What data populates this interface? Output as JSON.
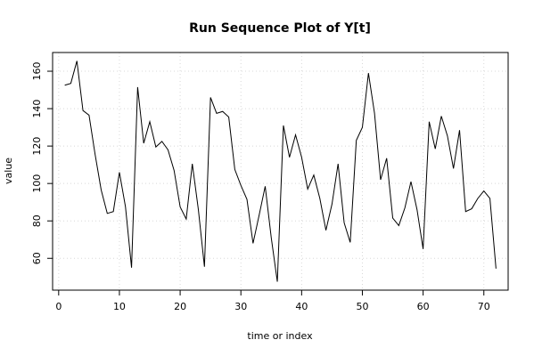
{
  "chart_data": {
    "type": "line",
    "title": "Run Sequence Plot of Y[t]",
    "xlabel": "time or index",
    "ylabel": "value",
    "xlim": [
      -1,
      74
    ],
    "ylim": [
      43,
      170
    ],
    "xticks": [
      0,
      10,
      20,
      30,
      40,
      50,
      60,
      70
    ],
    "yticks": [
      60,
      80,
      100,
      120,
      140,
      160
    ],
    "grid": true,
    "x": [
      1,
      2,
      3,
      4,
      5,
      6,
      7,
      8,
      9,
      10,
      11,
      12,
      13,
      14,
      15,
      16,
      17,
      18,
      19,
      20,
      21,
      22,
      23,
      24,
      25,
      26,
      27,
      28,
      29,
      30,
      31,
      32,
      33,
      34,
      35,
      36,
      37,
      38,
      39,
      40,
      41,
      42,
      43,
      44,
      45,
      46,
      47,
      48,
      49,
      50,
      51,
      52,
      53,
      54,
      55,
      56,
      57,
      58,
      59,
      60,
      61,
      62,
      63,
      64,
      65,
      66,
      67,
      68,
      69,
      70,
      71,
      72
    ],
    "series": [
      {
        "values": [
          152.5,
          153.5,
          165.5,
          139,
          136.5,
          115.5,
          96.5,
          84,
          85,
          106,
          87.5,
          55,
          151.5,
          121.5,
          133,
          119.5,
          122.5,
          118,
          107,
          87.5,
          81,
          110.5,
          86,
          55.5,
          146,
          137.5,
          138.5,
          135.5,
          107.5,
          99,
          91.5,
          68,
          83,
          98.5,
          71,
          47.5,
          131,
          114,
          126,
          114,
          97,
          104.5,
          92,
          75,
          89,
          110.5,
          79,
          68.5,
          123,
          130,
          159,
          137.5,
          102,
          113.5,
          81.5,
          77.5,
          87,
          101,
          86,
          65,
          133,
          118.5,
          136,
          125.5,
          108,
          128.5,
          85,
          86.5,
          92,
          96,
          92,
          54.5
        ]
      }
    ]
  }
}
